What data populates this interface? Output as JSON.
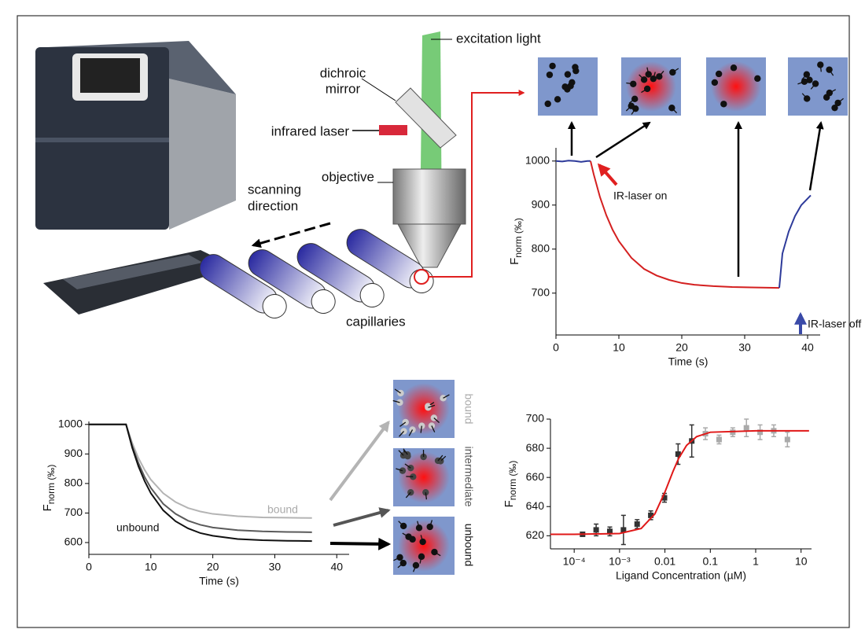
{
  "diagram": {
    "excitation_light": "excitation light",
    "dichroic_mirror": [
      "dichroic",
      "mirror"
    ],
    "infrared_laser": "infrared laser",
    "objective": "objective",
    "scanning_direction": [
      "scanning",
      "direction"
    ],
    "capillaries": "capillaries",
    "states": [
      "bound",
      "intermediate",
      "unbound"
    ]
  },
  "chart_data": [
    {
      "type": "line",
      "xlabel": "Time (s)",
      "ylabel": {
        "main": "F",
        "sub": "norm (‰)"
      },
      "xlim": [
        0,
        42
      ],
      "ylim": [
        605,
        1030
      ],
      "xticks": [
        0,
        10,
        20,
        30,
        40
      ],
      "yticks": [
        700,
        800,
        900,
        1000
      ],
      "annotations": [
        "IR-laser on",
        "IR-laser off"
      ],
      "series": [
        {
          "color": "#2d3a9a",
          "x": [
            0,
            1,
            2,
            3,
            4,
            5,
            5.5
          ],
          "values": [
            1000,
            999,
            1001,
            1000,
            998,
            1000,
            1000
          ]
        },
        {
          "color": "#d42020",
          "x": [
            5.5,
            6,
            7,
            8,
            9,
            10,
            12,
            14,
            16,
            18,
            20,
            22,
            25,
            28,
            31,
            35.5
          ],
          "values": [
            1000,
            970,
            918,
            877,
            844,
            818,
            780,
            755,
            740,
            730,
            723,
            719,
            716,
            714,
            713,
            712
          ]
        },
        {
          "color": "#2d3a9a",
          "x": [
            35.5,
            36,
            37,
            38,
            39,
            40.5
          ],
          "values": [
            712,
            790,
            840,
            875,
            900,
            922
          ]
        }
      ]
    },
    {
      "type": "line",
      "xlabel": "Time (s)",
      "ylabel": {
        "main": "F",
        "sub": "norm (‰)"
      },
      "xlim": [
        0,
        42
      ],
      "ylim": [
        560,
        1010
      ],
      "xticks": [
        0,
        10,
        20,
        30,
        40
      ],
      "yticks": [
        600,
        700,
        800,
        900,
        1000
      ],
      "series": [
        {
          "name": "bound",
          "color": "#b4b4b4",
          "x": [
            0,
            2,
            4,
            6,
            7,
            8,
            9,
            10,
            12,
            14,
            16,
            18,
            20,
            24,
            28,
            32,
            36
          ],
          "values": [
            1000,
            1000,
            1000,
            1000,
            937,
            886,
            846,
            813,
            767,
            737,
            717,
            705,
            697,
            689,
            685,
            684,
            683
          ]
        },
        {
          "color": "#5a5a5a",
          "x": [
            0,
            2,
            4,
            6,
            7,
            8,
            9,
            10,
            12,
            14,
            16,
            18,
            20,
            24,
            28,
            32,
            36
          ],
          "values": [
            1000,
            1000,
            1000,
            1000,
            927,
            869,
            822,
            785,
            731,
            697,
            674,
            660,
            651,
            642,
            638,
            636,
            635
          ]
        },
        {
          "name": "unbound",
          "color": "#111111",
          "x": [
            0,
            2,
            4,
            6,
            7,
            8,
            9,
            10,
            12,
            14,
            16,
            18,
            20,
            24,
            28,
            32,
            36
          ],
          "values": [
            1000,
            1000,
            1000,
            1000,
            921,
            858,
            808,
            767,
            709,
            672,
            648,
            632,
            623,
            612,
            608,
            606,
            605
          ]
        }
      ]
    },
    {
      "type": "scatter",
      "xscale": "log",
      "xlabel": "Ligand Concentration (µM)",
      "ylabel": {
        "main": "F",
        "sub": "norm (‰)"
      },
      "xlim": [
        3e-05,
        17
      ],
      "ylim": [
        611,
        700
      ],
      "xticks": [
        {
          "value": 0.0001,
          "label": "10⁻⁴"
        },
        {
          "value": 0.001,
          "label": "10⁻³"
        },
        0.01,
        0.1,
        1,
        10
      ],
      "yticks": [
        620,
        640,
        660,
        680,
        700
      ],
      "series": [
        {
          "type": "errorbar",
          "color": "#333333",
          "x": [
            0.000153,
            0.000305,
            0.00061,
            0.00122,
            0.00244,
            0.00488,
            0.00977,
            0.0195,
            0.039
          ],
          "values": [
            621,
            624,
            623,
            624,
            628,
            634,
            646,
            676,
            685
          ],
          "errors": [
            1,
            4,
            3,
            10,
            3,
            3,
            3,
            7,
            11
          ]
        },
        {
          "type": "errorbar",
          "color": "#aaaaaa",
          "x": [
            0.078,
            0.156,
            0.3125,
            0.625,
            1.25,
            2.5,
            5
          ],
          "values": [
            690,
            686,
            691,
            694,
            691,
            692,
            686
          ],
          "errors": [
            4,
            3,
            3,
            6,
            5,
            4,
            5
          ]
        },
        {
          "type": "line",
          "color": "#e01818",
          "x": [
            3e-05,
            0.0001,
            0.001,
            0.003,
            0.006,
            0.01,
            0.015,
            0.02,
            0.03,
            0.05,
            0.1,
            1,
            15
          ],
          "values": [
            621,
            621,
            621.5,
            625,
            635,
            650,
            664,
            673,
            682,
            688,
            691,
            692,
            692
          ]
        }
      ]
    }
  ]
}
